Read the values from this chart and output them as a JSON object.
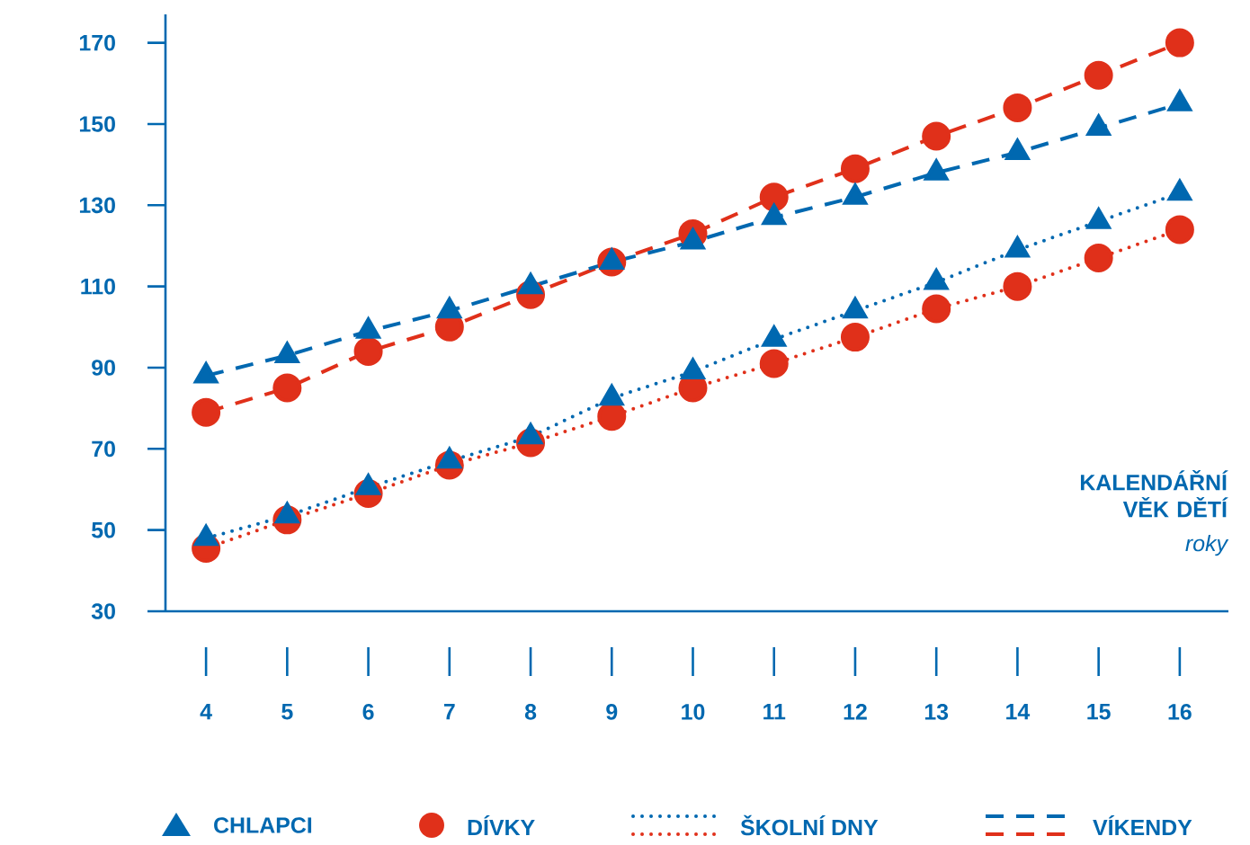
{
  "chart_data": {
    "type": "line",
    "xlabel": "KALENDÁŘNÍ VĚK DĚTÍ",
    "annotations": [
      "roky",
      "CHLAPCI",
      "DÍVKY",
      "ŠKOLNÍ DNY",
      "VÍKENDY"
    ],
    "x": [
      4,
      5,
      6,
      7,
      8,
      9,
      10,
      11,
      12,
      13,
      14,
      15,
      16
    ],
    "xlim": [
      3.5,
      16.6
    ],
    "xticks": [
      4,
      5,
      6,
      7,
      8,
      9,
      10,
      11,
      12,
      13,
      14,
      15,
      16
    ],
    "ylim": [
      30,
      177
    ],
    "yticks": [
      30,
      50,
      70,
      90,
      110,
      130,
      150,
      170
    ],
    "grid": false,
    "series": [
      {
        "color": "#0068b0",
        "marker": "triangle",
        "line_style": "dotted",
        "values": [
          48,
          53.5,
          60.5,
          67,
          73,
          82.5,
          89,
          97,
          104,
          111,
          119,
          126,
          133
        ]
      },
      {
        "color": "#e0301a",
        "marker": "circle",
        "line_style": "dotted",
        "values": [
          45.5,
          52.5,
          59,
          66,
          71.5,
          78,
          85,
          91,
          97.5,
          104.5,
          110,
          117,
          124
        ]
      },
      {
        "color": "#0068b0",
        "marker": "triangle",
        "line_style": "dashed",
        "values": [
          88,
          93,
          99,
          104,
          110,
          116,
          121,
          127,
          132,
          138,
          143,
          149,
          155
        ]
      },
      {
        "color": "#e0301a",
        "marker": "circle",
        "line_style": "dashed",
        "values": [
          79,
          85,
          94,
          100,
          108,
          116,
          123,
          132,
          139,
          147,
          154,
          162,
          170
        ]
      }
    ]
  }
}
